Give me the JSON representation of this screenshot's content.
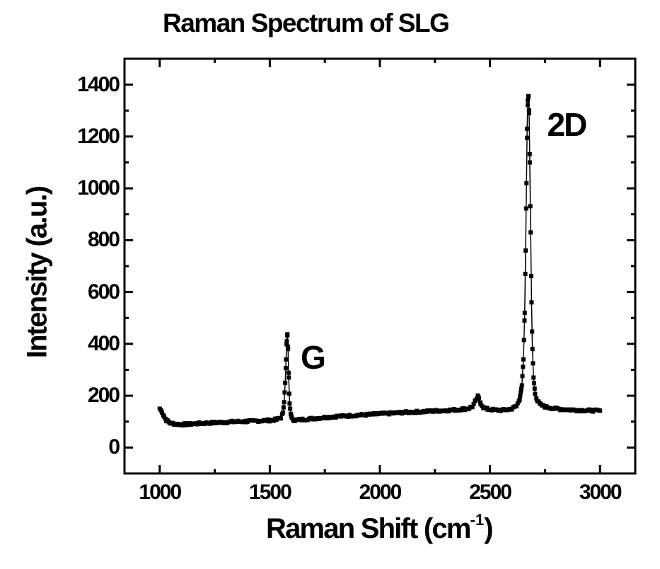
{
  "chart_data": {
    "type": "line",
    "title": "Raman Spectrum of SLG",
    "xlabel": "Raman Shift",
    "xlabel_unit_base": "(cm",
    "xlabel_unit_sup": "-1",
    "xlabel_unit_close": ")",
    "ylabel": "Intensity (a.u.)",
    "xlim": [
      840,
      3160
    ],
    "ylim": [
      -100,
      1500
    ],
    "x_ticks": [
      1000,
      1500,
      2000,
      2500,
      3000
    ],
    "x_minor_ticks": [
      1250,
      1750,
      2250,
      2750
    ],
    "y_ticks": [
      0,
      200,
      400,
      600,
      800,
      1000,
      1200,
      1400
    ],
    "y_minor_ticks": [
      100,
      300,
      500,
      700,
      900,
      1100,
      1300
    ],
    "grid": false,
    "legend": null,
    "marker": "square",
    "line_color": "#000000",
    "series": [
      {
        "name": "SLG",
        "x": [
          1000,
          1010,
          1020,
          1030,
          1045,
          1060,
          1080,
          1100,
          1130,
          1160,
          1200,
          1250,
          1300,
          1350,
          1400,
          1450,
          1500,
          1530,
          1550,
          1560,
          1565,
          1570,
          1574,
          1577,
          1580,
          1583,
          1586,
          1590,
          1595,
          1600,
          1610,
          1630,
          1660,
          1700,
          1750,
          1800,
          1850,
          1900,
          1950,
          2000,
          2050,
          2100,
          2150,
          2200,
          2250,
          2300,
          2350,
          2400,
          2420,
          2435,
          2445,
          2450,
          2458,
          2470,
          2490,
          2520,
          2550,
          2580,
          2600,
          2620,
          2635,
          2645,
          2652,
          2658,
          2662,
          2666,
          2669,
          2672,
          2675,
          2678,
          2681,
          2685,
          2689,
          2693,
          2698,
          2705,
          2715,
          2730,
          2750,
          2780,
          2820,
          2860,
          2900,
          2950,
          3000
        ],
        "y": [
          150,
          138,
          120,
          105,
          96,
          92,
          90,
          89,
          90,
          92,
          94,
          96,
          98,
          100,
          101,
          103,
          105,
          108,
          115,
          135,
          175,
          250,
          340,
          410,
          437,
          380,
          270,
          170,
          130,
          112,
          106,
          107,
          109,
          112,
          116,
          120,
          122,
          125,
          127,
          130,
          132,
          135,
          137,
          139,
          141,
          143,
          146,
          150,
          158,
          180,
          197,
          190,
          170,
          155,
          148,
          145,
          144,
          146,
          150,
          160,
          185,
          240,
          340,
          520,
          760,
          1020,
          1230,
          1340,
          1356,
          1290,
          1100,
          830,
          560,
          380,
          270,
          210,
          180,
          165,
          158,
          152,
          148,
          146,
          144,
          143,
          142
        ]
      }
    ],
    "annotations": [
      {
        "text": "G",
        "x": 1640,
        "y": 410
      },
      {
        "text": "2D",
        "x": 2760,
        "y": 1310
      }
    ]
  }
}
